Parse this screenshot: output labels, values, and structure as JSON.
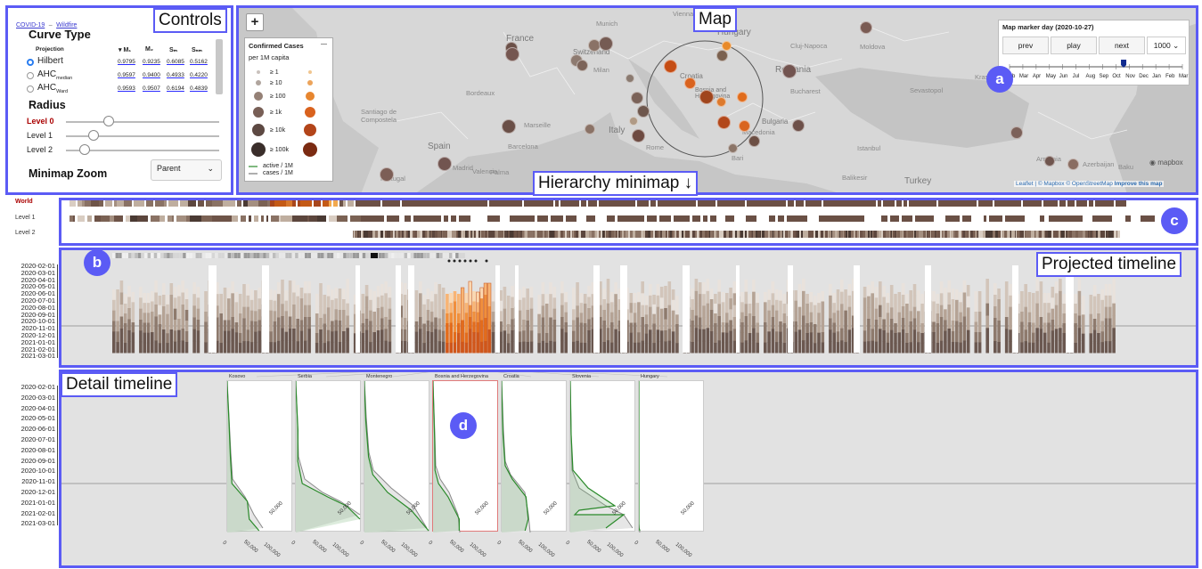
{
  "controls": {
    "breadcrumb": [
      "COVID-19",
      "Wildfire"
    ],
    "breadcrumb_sep": "–",
    "curve_type_title": "Curve Type",
    "table_headers": {
      "projection": "Projection",
      "m1": "▾ M₁",
      "m2": "M₂",
      "sm": "Sₘ",
      "snm": "Sₙₘ"
    },
    "rows": [
      {
        "label": "Hilbert",
        "sub": "",
        "selected": true,
        "values": [
          "0.9795",
          "0.9235",
          "0.6085",
          "0.5162"
        ]
      },
      {
        "label": "AHC",
        "sub": "median",
        "selected": false,
        "values": [
          "0.9597",
          "0.9400",
          "0.4933",
          "0.4220"
        ]
      },
      {
        "label": "AHC",
        "sub": "Ward",
        "selected": false,
        "values": [
          "0.9593",
          "0.9507",
          "0.6194",
          "0.4839"
        ]
      }
    ],
    "radius_title": "Radius",
    "levels": [
      {
        "label": "Level 0",
        "level": 0.28,
        "active": true
      },
      {
        "label": "Level 1",
        "level": 0.18,
        "active": false
      },
      {
        "label": "Level 2",
        "level": 0.12,
        "active": false
      }
    ],
    "minimap_zoom_title": "Minimap Zoom",
    "minimap_zoom_value": "Parent"
  },
  "tags": {
    "controls": "Controls",
    "map": "Map",
    "hierarchy": "Hierarchy minimap ↓",
    "projected": "Projected timeline",
    "detail": "Detail timeline"
  },
  "bubbles": {
    "a": "a",
    "b": "b",
    "c": "c",
    "d": "d"
  },
  "map": {
    "zoom_in": "+",
    "legend_title": "Confirmed Cases",
    "legend_sub": "per 1M capita",
    "legend_collapse": "—",
    "legend_items": [
      "≥ 1",
      "≥ 10",
      "≥ 100",
      "≥ 1k",
      "≥ 10k",
      "≥ 100k"
    ],
    "legend_lines": [
      "active / 1M",
      "cases / 1M"
    ],
    "marker_title": "Map marker day (2020-10-27)",
    "buttons": [
      "prev",
      "play",
      "next"
    ],
    "speed": "1000",
    "months": [
      "Feb",
      "Mar",
      "Apr",
      "May",
      "Jun",
      "Jul",
      "Aug",
      "Sep",
      "Oct",
      "Nov",
      "Dec",
      "Jan",
      "Feb",
      "Mar"
    ],
    "marker_position": 0.66,
    "attribution": "Leaflet | © Mapbox © OpenStreetMap",
    "improve": "Improve this map",
    "mapbox_logo": "mapbox",
    "countries": [
      {
        "name": "France"
      },
      {
        "name": "Spain"
      },
      {
        "name": "Italy"
      },
      {
        "name": "Hungary"
      },
      {
        "name": "Romania"
      },
      {
        "name": "Croatia"
      },
      {
        "name": "Bosnia and Herzegovina"
      },
      {
        "name": "Bulgaria"
      },
      {
        "name": "Turkey"
      },
      {
        "name": "Switzerland"
      }
    ],
    "cities": [
      "Munich",
      "Vienna",
      "Cluj-Napoca",
      "Moldova",
      "Bordeaux",
      "Milan",
      "Marseille",
      "Santiago de Compostela",
      "Barcelona",
      "Madrid",
      "Valencia",
      "Palma",
      "Rome",
      "Bucharest",
      "Sevastopol",
      "Krasnodar",
      "Istanbul",
      "Balikesir",
      "Azerbaijan",
      "Baku",
      "Armenia",
      "Portugal",
      "Bari",
      "Macedonia"
    ]
  },
  "minimap": {
    "labels": [
      "World",
      "Level 1",
      "Level 2"
    ]
  },
  "timeline": {
    "dates": [
      "2020-02-01",
      "2020-03-01",
      "2020-04-01",
      "2020-05-01",
      "2020-06-01",
      "2020-07-01",
      "2020-08-01",
      "2020-09-01",
      "2020-10-01",
      "2020-11-01",
      "2020-12-01",
      "2021-01-01",
      "2021-02-01",
      "2021-03-01"
    ]
  },
  "detail": {
    "countries": [
      "Kosovo",
      "Serbia",
      "Montenegro",
      "Bosnia and Herzegovina",
      "Croatia",
      "Slovenia",
      "Hungary"
    ],
    "axis_labels": [
      "0",
      "50,000",
      "100,000"
    ],
    "right_label": "50,000"
  }
}
